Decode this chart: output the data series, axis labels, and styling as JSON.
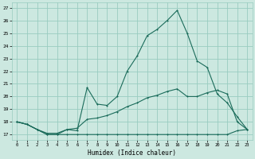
{
  "xlabel": "Humidex (Indice chaleur)",
  "xlim": [
    -0.5,
    23.5
  ],
  "ylim": [
    16.6,
    27.4
  ],
  "xticks": [
    0,
    1,
    2,
    3,
    4,
    5,
    6,
    7,
    8,
    9,
    10,
    11,
    12,
    13,
    14,
    15,
    16,
    17,
    18,
    19,
    20,
    21,
    22,
    23
  ],
  "yticks": [
    17,
    18,
    19,
    20,
    21,
    22,
    23,
    24,
    25,
    26,
    27
  ],
  "bg_color": "#cce8e0",
  "grid_color": "#99ccc0",
  "line_color": "#1a6b5a",
  "hours": [
    0,
    1,
    2,
    3,
    4,
    5,
    6,
    7,
    8,
    9,
    10,
    11,
    12,
    13,
    14,
    15,
    16,
    17,
    18,
    19,
    20,
    21,
    22,
    23
  ],
  "line_max": [
    18.0,
    17.8,
    17.4,
    17.0,
    17.0,
    17.4,
    17.3,
    20.7,
    19.4,
    19.3,
    20.0,
    22.0,
    23.2,
    24.8,
    25.3,
    26.0,
    26.8,
    25.0,
    22.8,
    22.3,
    20.2,
    19.5,
    18.4,
    17.4
  ],
  "line_mid": [
    18.0,
    17.8,
    17.4,
    17.1,
    17.1,
    17.4,
    17.5,
    18.2,
    18.3,
    18.5,
    18.8,
    19.2,
    19.5,
    19.9,
    20.1,
    20.4,
    20.6,
    20.0,
    20.0,
    20.3,
    20.5,
    20.2,
    18.0,
    17.4
  ],
  "line_min": [
    18.0,
    17.8,
    17.4,
    17.0,
    17.0,
    17.0,
    17.0,
    17.0,
    17.0,
    17.0,
    17.0,
    17.0,
    17.0,
    17.0,
    17.0,
    17.0,
    17.0,
    17.0,
    17.0,
    17.0,
    17.0,
    17.0,
    17.3,
    17.4
  ]
}
